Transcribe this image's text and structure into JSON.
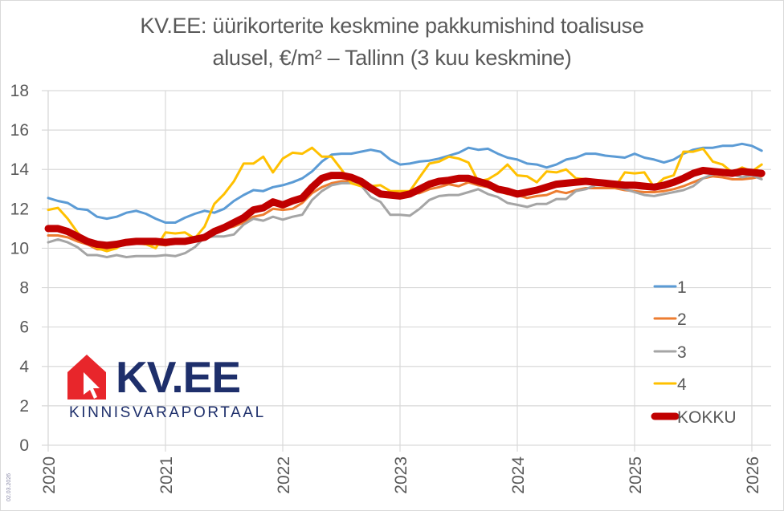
{
  "title_line1": "KV.EE: üürikorterite keskmine pakkumishind toalisuse",
  "title_line2": "alusel, €/m² – Tallinn (3 kuu keskmine)",
  "logo": {
    "brand": "KV.EE",
    "subtitle": "KINNISVARAPORTAAL",
    "icon": "house-cursor-icon",
    "icon_color": "#e8262b",
    "text_color": "#1e2f6b"
  },
  "date_stamp": "02.03.2026",
  "chart_data": {
    "type": "line",
    "title": "KV.EE: üürikorterite keskmine pakkumishind toalisuse alusel, €/m² – Tallinn (3 kuu keskmine)",
    "xlabel": "",
    "ylabel": "",
    "ylim": [
      0,
      18
    ],
    "yticks": [
      0,
      2,
      4,
      6,
      8,
      10,
      12,
      14,
      16,
      18
    ],
    "xticks": [
      "2020",
      "2021",
      "2022",
      "2023",
      "2024",
      "2025",
      "2026"
    ],
    "x_start": "2020-01",
    "x_end": "2026-02",
    "x_frequency": "monthly",
    "grid": true,
    "legend_position": "right",
    "series": [
      {
        "name": "1",
        "color": "#5b9bd5",
        "width": 3,
        "values": [
          12.55,
          12.4,
          12.3,
          12.0,
          11.95,
          11.6,
          11.5,
          11.6,
          11.8,
          11.9,
          11.75,
          11.5,
          11.3,
          11.3,
          11.55,
          11.75,
          11.9,
          11.8,
          12.0,
          12.4,
          12.7,
          12.95,
          12.9,
          13.1,
          13.2,
          13.35,
          13.55,
          13.9,
          14.4,
          14.75,
          14.8,
          14.8,
          14.9,
          15.0,
          14.9,
          14.5,
          14.25,
          14.3,
          14.4,
          14.45,
          14.55,
          14.7,
          14.85,
          15.1,
          15.0,
          15.05,
          14.8,
          14.6,
          14.5,
          14.3,
          14.25,
          14.1,
          14.25,
          14.5,
          14.6,
          14.8,
          14.8,
          14.7,
          14.65,
          14.6,
          14.8,
          14.6,
          14.5,
          14.35,
          14.5,
          14.8,
          15.0,
          15.1,
          15.1,
          15.2,
          15.2,
          15.3,
          15.2,
          14.95
        ]
      },
      {
        "name": "2",
        "color": "#ed7d31",
        "width": 3,
        "values": [
          10.65,
          10.65,
          10.55,
          10.35,
          10.2,
          9.95,
          9.95,
          10.05,
          10.2,
          10.25,
          10.2,
          10.2,
          10.15,
          10.25,
          10.3,
          10.35,
          10.5,
          10.8,
          11.0,
          11.1,
          11.3,
          11.6,
          11.7,
          12.0,
          11.95,
          12.0,
          12.3,
          12.8,
          13.1,
          13.3,
          13.4,
          13.4,
          13.3,
          13.1,
          12.8,
          12.6,
          12.7,
          12.75,
          12.8,
          13.0,
          13.1,
          13.25,
          13.15,
          13.35,
          13.2,
          13.1,
          12.9,
          12.75,
          12.7,
          12.55,
          12.65,
          12.7,
          12.9,
          12.8,
          12.95,
          13.05,
          13.05,
          13.05,
          13.05,
          12.95,
          12.9,
          12.85,
          12.85,
          12.9,
          13.0,
          13.15,
          13.35,
          13.55,
          13.65,
          13.6,
          13.5,
          13.5,
          13.55,
          13.65
        ]
      },
      {
        "name": "3",
        "color": "#a5a5a5",
        "width": 3,
        "values": [
          10.3,
          10.45,
          10.3,
          10.05,
          9.65,
          9.65,
          9.55,
          9.65,
          9.55,
          9.6,
          9.6,
          9.6,
          9.65,
          9.6,
          9.75,
          10.05,
          10.55,
          10.6,
          10.6,
          10.7,
          11.2,
          11.5,
          11.4,
          11.6,
          11.45,
          11.6,
          11.7,
          12.45,
          12.9,
          13.2,
          13.3,
          13.3,
          13.2,
          12.6,
          12.35,
          11.7,
          11.7,
          11.65,
          12.0,
          12.45,
          12.65,
          12.7,
          12.7,
          12.85,
          13.0,
          12.75,
          12.6,
          12.3,
          12.2,
          12.1,
          12.25,
          12.25,
          12.5,
          12.5,
          12.9,
          13.0,
          13.2,
          13.2,
          13.15,
          13.0,
          12.85,
          12.7,
          12.65,
          12.75,
          12.85,
          12.95,
          13.15,
          13.55,
          13.75,
          13.8,
          13.75,
          13.6,
          13.7,
          13.5
        ]
      },
      {
        "name": "4",
        "color": "#ffc000",
        "width": 3,
        "values": [
          11.95,
          12.05,
          11.5,
          10.8,
          10.3,
          10.0,
          9.85,
          10.0,
          10.4,
          10.3,
          10.2,
          10.0,
          10.8,
          10.75,
          10.8,
          10.5,
          11.1,
          12.25,
          12.75,
          13.4,
          14.3,
          14.3,
          14.65,
          13.85,
          14.55,
          14.85,
          14.8,
          15.1,
          14.65,
          14.65,
          14.0,
          13.3,
          13.15,
          13.15,
          13.2,
          12.9,
          12.9,
          12.9,
          13.6,
          14.3,
          14.4,
          14.65,
          14.55,
          14.35,
          13.4,
          13.5,
          13.8,
          14.25,
          13.7,
          13.65,
          13.35,
          13.9,
          13.85,
          14.0,
          13.55,
          13.5,
          13.45,
          13.35,
          13.1,
          13.85,
          13.8,
          13.85,
          13.1,
          13.55,
          13.7,
          14.9,
          14.9,
          15.05,
          14.4,
          14.25,
          13.85,
          14.1,
          13.9,
          14.25
        ]
      },
      {
        "name": "KOKKU",
        "color": "#c00000",
        "width": 9,
        "values": [
          11.0,
          11.0,
          10.85,
          10.6,
          10.35,
          10.2,
          10.15,
          10.2,
          10.3,
          10.35,
          10.35,
          10.35,
          10.3,
          10.35,
          10.35,
          10.45,
          10.55,
          10.85,
          11.05,
          11.3,
          11.55,
          11.95,
          12.05,
          12.35,
          12.2,
          12.4,
          12.55,
          13.1,
          13.55,
          13.7,
          13.7,
          13.6,
          13.4,
          13.05,
          12.75,
          12.7,
          12.65,
          12.75,
          13.0,
          13.25,
          13.4,
          13.45,
          13.55,
          13.55,
          13.4,
          13.25,
          13.0,
          12.9,
          12.75,
          12.85,
          12.95,
          13.1,
          13.25,
          13.3,
          13.35,
          13.4,
          13.35,
          13.3,
          13.25,
          13.2,
          13.2,
          13.15,
          13.1,
          13.2,
          13.35,
          13.55,
          13.8,
          13.95,
          13.9,
          13.85,
          13.8,
          13.9,
          13.85,
          13.8
        ]
      }
    ]
  }
}
